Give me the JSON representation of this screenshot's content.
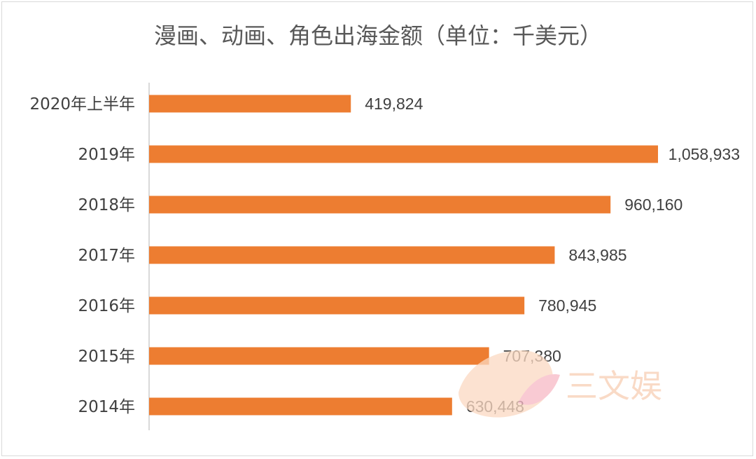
{
  "chart_data": {
    "type": "bar",
    "orientation": "horizontal",
    "title": "漫画、动画、角色出海金额（单位：千美元）",
    "categories": [
      "2020年上半年",
      "2019年",
      "2018年",
      "2017年",
      "2016年",
      "2015年",
      "2014年"
    ],
    "values": [
      419824,
      1058933,
      960160,
      843985,
      780945,
      707380,
      630448
    ],
    "value_labels": [
      "419,824",
      "1,058,933",
      "960,160",
      "843,985",
      "780,945",
      "707,380",
      "630,448"
    ],
    "xlim": [
      0,
      1058933
    ],
    "grid": false,
    "legend": "none",
    "bar_color": "#ED7D31"
  },
  "watermark": {
    "text": "三文娱",
    "color": "#F6C6A6"
  }
}
